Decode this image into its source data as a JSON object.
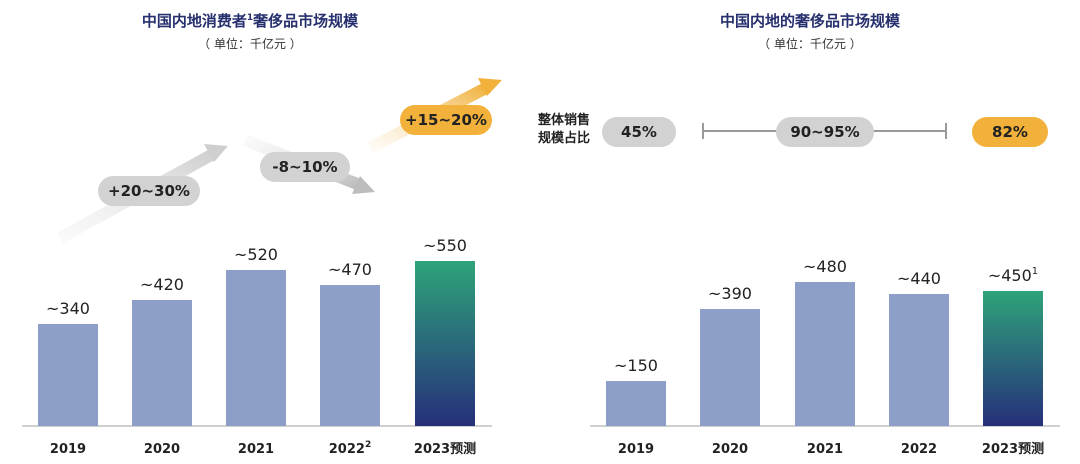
{
  "chart_data": [
    {
      "type": "bar",
      "title": "中国内地消费者",
      "title_sup": "1",
      "title_suffix": "奢侈品市场规模",
      "unit": "（ 单位：千亿元 ）",
      "categories": [
        "2019",
        "2020",
        "2021",
        "2022",
        "2023预测"
      ],
      "category_sups": [
        "",
        "",
        "",
        "2",
        ""
      ],
      "values": [
        340,
        420,
        520,
        470,
        550
      ],
      "value_labels": [
        "~340",
        "~420",
        "~520",
        "~470",
        "~550"
      ],
      "value_label_sups": [
        "",
        "",
        "",
        "",
        ""
      ],
      "ylim": [
        0,
        600
      ],
      "growth_annotations": [
        {
          "text": "+20~30%",
          "from": "2019",
          "to": "2021"
        },
        {
          "text": "-8~10%",
          "from": "2021",
          "to": "2022"
        },
        {
          "text": "+15~20%",
          "from": "2022",
          "to": "2023预测"
        }
      ]
    },
    {
      "type": "bar",
      "title": "中国内地的奢侈品市场规模",
      "unit": "（ 单位：千亿元 ）",
      "categories": [
        "2019",
        "2020",
        "2021",
        "2022",
        "2023预测"
      ],
      "category_sups": [
        "",
        "",
        "",
        "",
        ""
      ],
      "values": [
        150,
        390,
        480,
        440,
        450
      ],
      "value_labels": [
        "~150",
        "~390",
        "~480",
        "~440",
        "~450"
      ],
      "value_label_sups": [
        "",
        "",
        "",
        "",
        "1"
      ],
      "ylim": [
        0,
        600
      ],
      "share": {
        "label_line1": "整体销售",
        "label_line2": "规模占比",
        "values": [
          "45%",
          "90~95%",
          "82%"
        ]
      }
    }
  ],
  "colors": {
    "bar": "#8d9fc8",
    "gradient_top": "#2ea37a",
    "gradient_bottom": "#262f7a",
    "pill_gray": "#d2d2d2",
    "pill_orange": "#f1b13b",
    "title": "#27306e"
  }
}
